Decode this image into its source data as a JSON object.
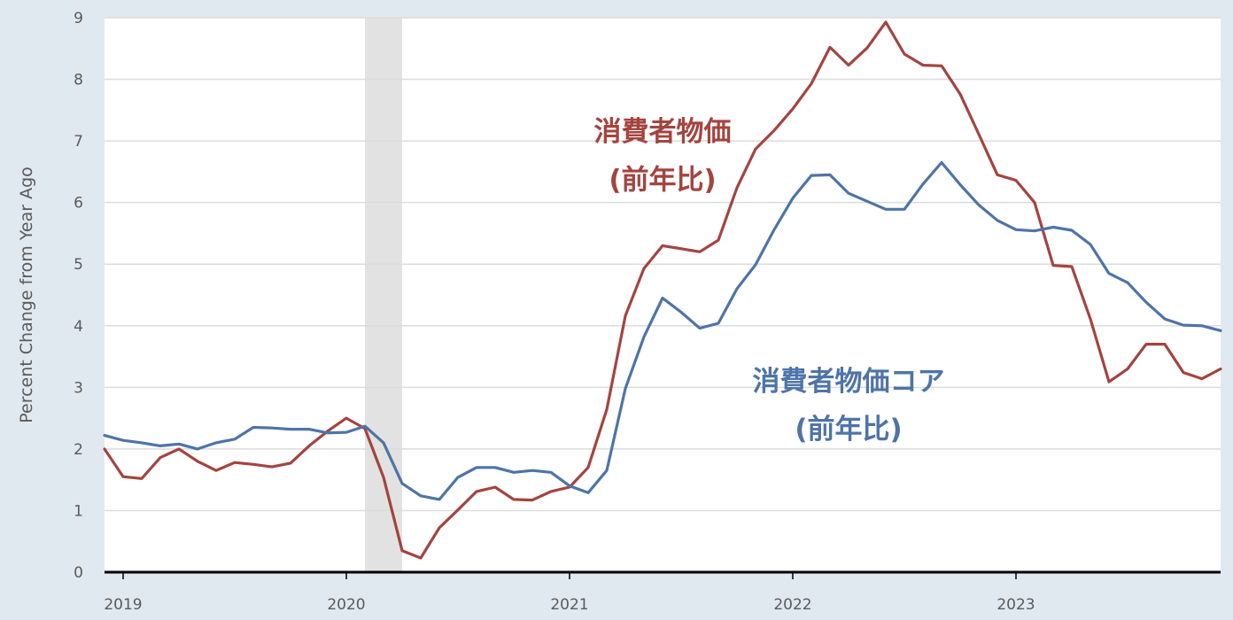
{
  "chart_data": {
    "type": "line",
    "title": "",
    "xlabel": "",
    "ylabel": "Percent Change from Year Ago",
    "ylim": [
      0,
      9
    ],
    "xlim": [
      "2018-12",
      "2023-12"
    ],
    "yticks": [
      0,
      1,
      2,
      3,
      4,
      5,
      6,
      7,
      8,
      9
    ],
    "xticks": [
      {
        "value": "2019-01",
        "label": "2019"
      },
      {
        "value": "2020-01",
        "label": "2020"
      },
      {
        "value": "2021-01",
        "label": "2021"
      },
      {
        "value": "2022-01",
        "label": "2022"
      },
      {
        "value": "2023-01",
        "label": "2023"
      }
    ],
    "grid": true,
    "recession_shading": [
      {
        "start": "2020-02",
        "end": "2020-04"
      }
    ],
    "x": [
      "2018-12",
      "2019-01",
      "2019-02",
      "2019-03",
      "2019-04",
      "2019-05",
      "2019-06",
      "2019-07",
      "2019-08",
      "2019-09",
      "2019-10",
      "2019-11",
      "2019-12",
      "2020-01",
      "2020-02",
      "2020-03",
      "2020-04",
      "2020-05",
      "2020-06",
      "2020-07",
      "2020-08",
      "2020-09",
      "2020-10",
      "2020-11",
      "2020-12",
      "2021-01",
      "2021-02",
      "2021-03",
      "2021-04",
      "2021-05",
      "2021-06",
      "2021-07",
      "2021-08",
      "2021-09",
      "2021-10",
      "2021-11",
      "2021-12",
      "2022-01",
      "2022-02",
      "2022-03",
      "2022-04",
      "2022-05",
      "2022-06",
      "2022-07",
      "2022-08",
      "2022-09",
      "2022-10",
      "2022-11",
      "2022-12",
      "2023-01",
      "2023-02",
      "2023-03",
      "2023-04",
      "2023-05",
      "2023-06",
      "2023-07",
      "2023-08",
      "2023-09",
      "2023-10",
      "2023-11",
      "2023-12"
    ],
    "series": [
      {
        "name": "消費者物価\n(前年比)",
        "color": "#a4443f",
        "values": [
          2.0,
          1.55,
          1.52,
          1.86,
          2.0,
          1.8,
          1.65,
          1.78,
          1.75,
          1.71,
          1.77,
          2.05,
          2.29,
          2.5,
          2.33,
          1.54,
          0.35,
          0.23,
          0.72,
          1.01,
          1.31,
          1.38,
          1.18,
          1.17,
          1.31,
          1.38,
          1.7,
          2.64,
          4.16,
          4.93,
          5.3,
          5.25,
          5.2,
          5.39,
          6.24,
          6.87,
          7.17,
          7.52,
          7.93,
          8.52,
          8.23,
          8.51,
          8.93,
          8.41,
          8.23,
          8.22,
          7.76,
          7.11,
          6.45,
          6.36,
          6.0,
          4.98,
          4.96,
          4.11,
          3.09,
          3.3,
          3.7,
          3.7,
          3.24,
          3.14,
          3.3
        ]
      },
      {
        "name": "消費者物価コア\n(前年比)",
        "color": "#4e74a8",
        "values": [
          2.22,
          2.14,
          2.1,
          2.05,
          2.08,
          2.0,
          2.1,
          2.16,
          2.35,
          2.34,
          2.32,
          2.32,
          2.26,
          2.27,
          2.37,
          2.1,
          1.44,
          1.24,
          1.18,
          1.54,
          1.7,
          1.7,
          1.62,
          1.65,
          1.62,
          1.4,
          1.29,
          1.65,
          2.98,
          3.82,
          4.45,
          4.22,
          3.96,
          4.04,
          4.6,
          4.99,
          5.56,
          6.07,
          6.44,
          6.45,
          6.15,
          6.02,
          5.89,
          5.89,
          6.3,
          6.65,
          6.29,
          5.96,
          5.71,
          5.56,
          5.54,
          5.6,
          5.55,
          5.32,
          4.85,
          4.7,
          4.38,
          4.11,
          4.01,
          4.0,
          3.92
        ]
      }
    ],
    "series_labels": [
      {
        "lines": [
          "消費者物価",
          "(前年比)"
        ],
        "color": "#a4443f",
        "anchor": {
          "x": "2021-06",
          "y": 7.0
        }
      },
      {
        "lines": [
          "消費者物価コア",
          "(前年比)"
        ],
        "color": "#4e74a8",
        "anchor": {
          "x": "2022-04",
          "y": 2.95
        }
      }
    ]
  }
}
